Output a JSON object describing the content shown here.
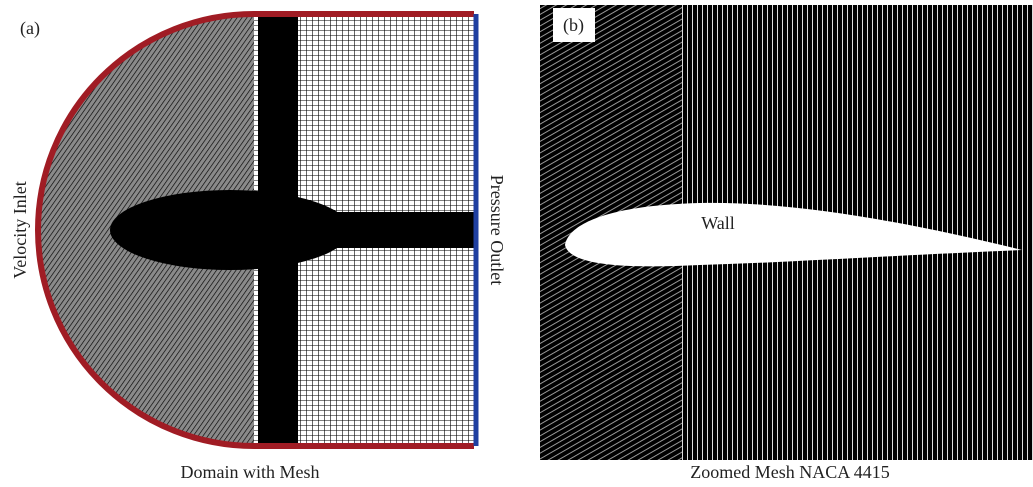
{
  "panel_a": {
    "label": "(a)",
    "inlet": "Velocity Inlet",
    "outlet": "Pressure Outlet",
    "caption": "Domain with Mesh"
  },
  "panel_b": {
    "label": "(b)",
    "wall": "Wall",
    "caption": "Zoomed Mesh NACA 4415"
  }
}
